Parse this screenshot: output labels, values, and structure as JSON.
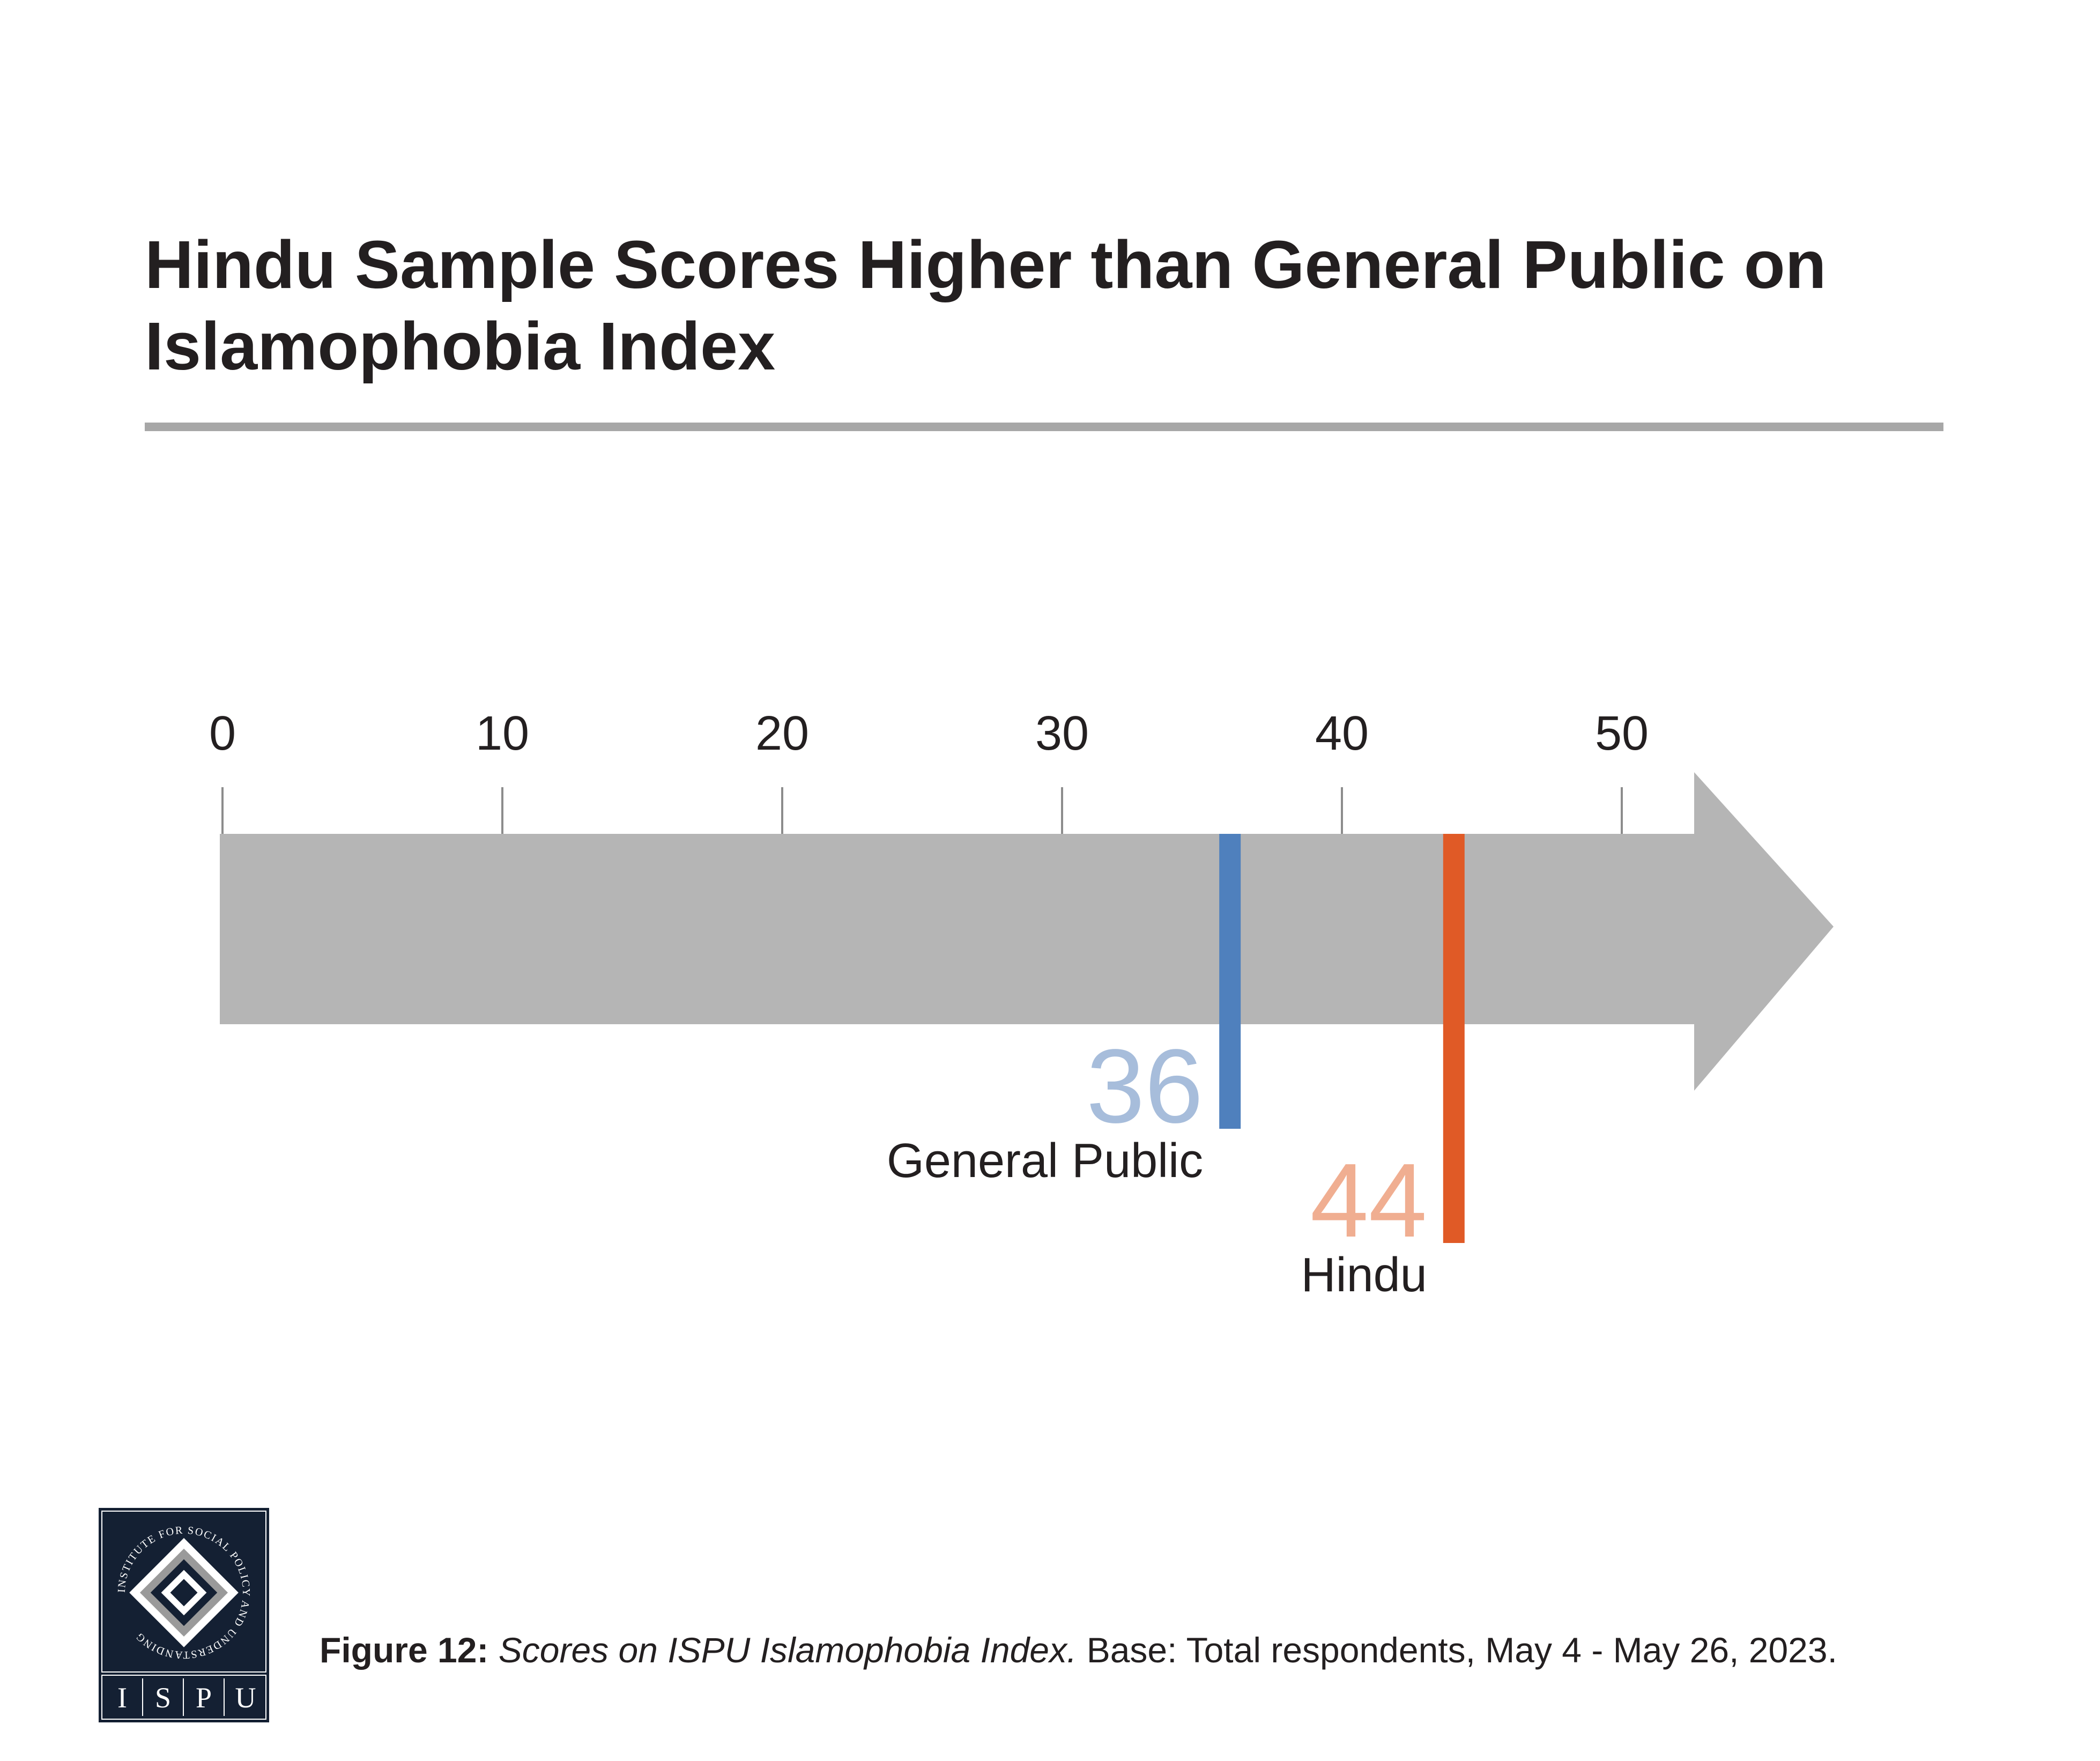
{
  "title": "Hindu Sample Scores Higher than General Public on Islamophobia Index",
  "colors": {
    "arrow": "#b5b5b5",
    "tick": "#8c8c8c",
    "title_rule": "#a7a7a7",
    "text": "#231f20",
    "logo_bg": "#142033"
  },
  "chart_data": {
    "type": "scale",
    "xlim": [
      0,
      55
    ],
    "ticks": [
      0,
      10,
      20,
      30,
      40,
      50
    ],
    "series": [
      {
        "name": "General Public",
        "value": 36,
        "label": "36",
        "color": "#4f80bd",
        "label_color": "#a7bddb"
      },
      {
        "name": "Hindu",
        "value": 44,
        "label": "44",
        "color": "#e05a26",
        "label_color": "#f0ae91"
      }
    ]
  },
  "caption": {
    "figure_label": "Figure 12:",
    "figure_title": "Scores on ISPU Islamophobia Index.",
    "figure_text": "Base: Total respondents, May 4 - May 26, 2023."
  },
  "logo": {
    "ring_text": "INSTITUTE FOR SOCIAL POLICY AND UNDERSTANDING",
    "letters": [
      "I",
      "S",
      "P",
      "U"
    ]
  }
}
